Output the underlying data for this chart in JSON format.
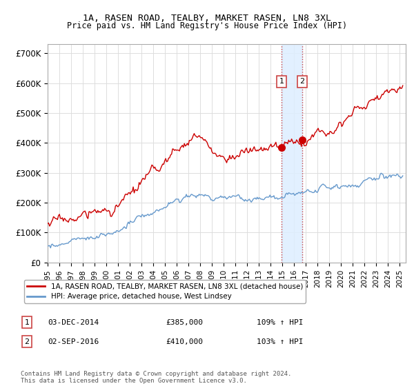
{
  "title": "1A, RASEN ROAD, TEALBY, MARKET RASEN, LN8 3XL",
  "subtitle": "Price paid vs. HM Land Registry's House Price Index (HPI)",
  "ylabel_ticks": [
    "£0",
    "£100K",
    "£200K",
    "£300K",
    "£400K",
    "£500K",
    "£600K",
    "£700K"
  ],
  "ytick_values": [
    0,
    100000,
    200000,
    300000,
    400000,
    500000,
    600000,
    700000
  ],
  "ylim": [
    0,
    730000
  ],
  "sale1": {
    "date_num": 2014.92,
    "price": 385000,
    "label": "1",
    "text": "03-DEC-2014",
    "price_str": "£385,000",
    "hpi_str": "109% ↑ HPI"
  },
  "sale2": {
    "date_num": 2016.67,
    "price": 410000,
    "label": "2",
    "text": "02-SEP-2016",
    "price_str": "£410,000",
    "hpi_str": "103% ↑ HPI"
  },
  "shade_xmin": 2014.92,
  "shade_xmax": 2016.67,
  "xlim_min": 1995.0,
  "xlim_max": 2025.5,
  "legend_line1": "1A, RASEN ROAD, TEALBY, MARKET RASEN, LN8 3XL (detached house)",
  "legend_line2": "HPI: Average price, detached house, West Lindsey",
  "footer": "Contains HM Land Registry data © Crown copyright and database right 2024.\nThis data is licensed under the Open Government Licence v3.0.",
  "red_color": "#cc0000",
  "blue_color": "#6699cc",
  "shade_color": "#ddeeff"
}
